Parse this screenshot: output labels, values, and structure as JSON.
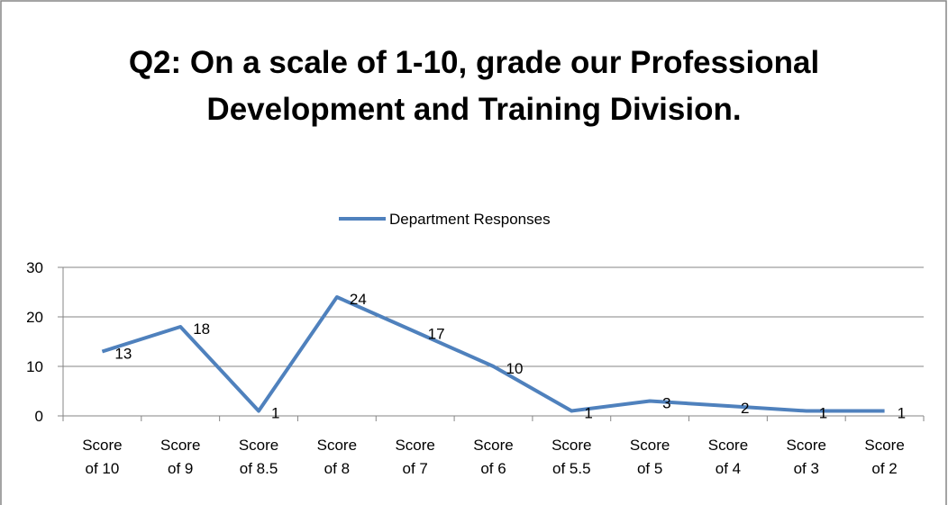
{
  "chart_data": {
    "type": "line",
    "title": "Q2: On a scale of 1-10, grade our Professional Development and Training Division.",
    "categories": [
      "Score of 10",
      "Score of 9",
      "Score of 8.5",
      "Score of 8",
      "Score of 7",
      "Score of 6",
      "Score of 5.5",
      "Score of 5",
      "Score of 4",
      "Score of 3",
      "Score of 2"
    ],
    "series": [
      {
        "name": "Department Responses",
        "color": "#4f81bd",
        "values": [
          13,
          18,
          1,
          24,
          17,
          10,
          1,
          3,
          2,
          1,
          1
        ]
      }
    ],
    "ylim": [
      0,
      30
    ],
    "yticks": [
      0,
      10,
      20,
      30
    ],
    "grid": true,
    "legend": "top"
  }
}
